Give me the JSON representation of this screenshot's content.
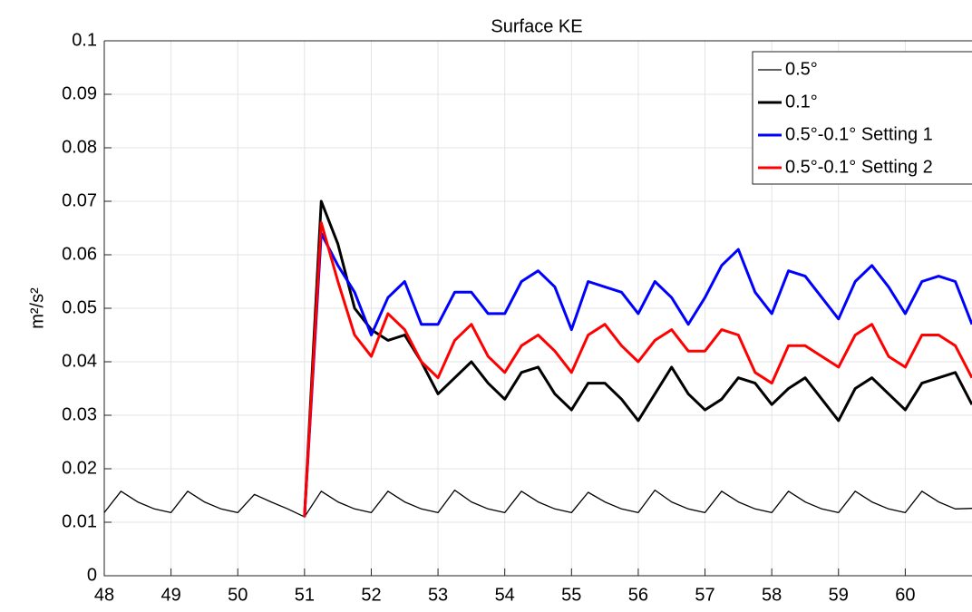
{
  "chart_data": {
    "type": "line",
    "title": "Surface KE",
    "ylabel": "m²/s²",
    "x": [
      48,
      48.25,
      48.5,
      48.75,
      49,
      49.25,
      49.5,
      49.75,
      50,
      50.25,
      50.5,
      50.75,
      51,
      51.25,
      51.5,
      51.75,
      52,
      52.25,
      52.5,
      52.75,
      53,
      53.25,
      53.5,
      53.75,
      54,
      54.25,
      54.5,
      54.75,
      55,
      55.25,
      55.5,
      55.75,
      56,
      56.25,
      56.5,
      56.75,
      57,
      57.25,
      57.5,
      57.75,
      58,
      58.25,
      58.5,
      58.75,
      59,
      59.25,
      59.5,
      59.75,
      60,
      60.25,
      60.5,
      60.75,
      61
    ],
    "series": [
      {
        "name": "0.5°",
        "color": "#000000",
        "width": 1.3,
        "values": [
          0.0118,
          0.0158,
          0.0138,
          0.0125,
          0.0118,
          0.0158,
          0.0138,
          0.0125,
          0.0118,
          0.0152,
          0.0138,
          0.0125,
          0.011,
          0.0158,
          0.0138,
          0.0125,
          0.0118,
          0.0158,
          0.0138,
          0.0125,
          0.0118,
          0.016,
          0.0138,
          0.0125,
          0.0118,
          0.0158,
          0.0138,
          0.0125,
          0.0118,
          0.0156,
          0.0138,
          0.0125,
          0.0118,
          0.016,
          0.0138,
          0.0125,
          0.0118,
          0.0158,
          0.0138,
          0.0125,
          0.0118,
          0.0158,
          0.0138,
          0.0125,
          0.0118,
          0.0158,
          0.0138,
          0.0125,
          0.0118,
          0.0158,
          0.0138,
          0.0125,
          0.0126
        ]
      },
      {
        "name": "0.1°",
        "color": "#000000",
        "width": 3,
        "values": [
          null,
          null,
          null,
          null,
          null,
          null,
          null,
          null,
          null,
          null,
          null,
          null,
          0.011,
          0.07,
          0.062,
          0.05,
          0.046,
          0.044,
          0.045,
          0.04,
          0.034,
          0.037,
          0.04,
          0.036,
          0.033,
          0.038,
          0.039,
          0.034,
          0.031,
          0.036,
          0.036,
          0.033,
          0.029,
          0.034,
          0.039,
          0.034,
          0.031,
          0.033,
          0.037,
          0.036,
          0.032,
          0.035,
          0.037,
          0.033,
          0.029,
          0.035,
          0.037,
          0.034,
          0.031,
          0.036,
          0.037,
          0.038,
          0.032
        ]
      },
      {
        "name": "0.5°-0.1° Setting 1",
        "color": "#0000ff",
        "width": 3,
        "values": [
          null,
          null,
          null,
          null,
          null,
          null,
          null,
          null,
          null,
          null,
          null,
          null,
          0.011,
          0.064,
          0.058,
          0.053,
          0.045,
          0.052,
          0.055,
          0.047,
          0.047,
          0.053,
          0.053,
          0.049,
          0.049,
          0.055,
          0.057,
          0.054,
          0.046,
          0.055,
          0.054,
          0.053,
          0.049,
          0.055,
          0.052,
          0.047,
          0.052,
          0.058,
          0.061,
          0.053,
          0.049,
          0.057,
          0.056,
          0.052,
          0.048,
          0.055,
          0.058,
          0.054,
          0.049,
          0.055,
          0.056,
          0.055,
          0.047
        ]
      },
      {
        "name": "0.5°-0.1° Setting 2",
        "color": "#ff0000",
        "width": 3,
        "values": [
          null,
          null,
          null,
          null,
          null,
          null,
          null,
          null,
          null,
          null,
          null,
          null,
          0.011,
          0.066,
          0.055,
          0.045,
          0.041,
          0.049,
          0.046,
          0.04,
          0.037,
          0.044,
          0.047,
          0.041,
          0.038,
          0.043,
          0.045,
          0.042,
          0.038,
          0.045,
          0.047,
          0.043,
          0.04,
          0.044,
          0.046,
          0.042,
          0.042,
          0.046,
          0.045,
          0.038,
          0.036,
          0.043,
          0.043,
          0.041,
          0.039,
          0.045,
          0.047,
          0.041,
          0.039,
          0.045,
          0.045,
          0.043,
          0.037
        ]
      }
    ],
    "xlim": [
      48,
      61
    ],
    "ylim": [
      0,
      0.1
    ],
    "xticks": [
      48,
      49,
      50,
      51,
      52,
      53,
      54,
      55,
      56,
      57,
      58,
      59,
      60
    ],
    "yticks": [
      0,
      0.01,
      0.02,
      0.03,
      0.04,
      0.05,
      0.06,
      0.07,
      0.08,
      0.09,
      0.1
    ],
    "grid": true,
    "legend": "upper right"
  }
}
